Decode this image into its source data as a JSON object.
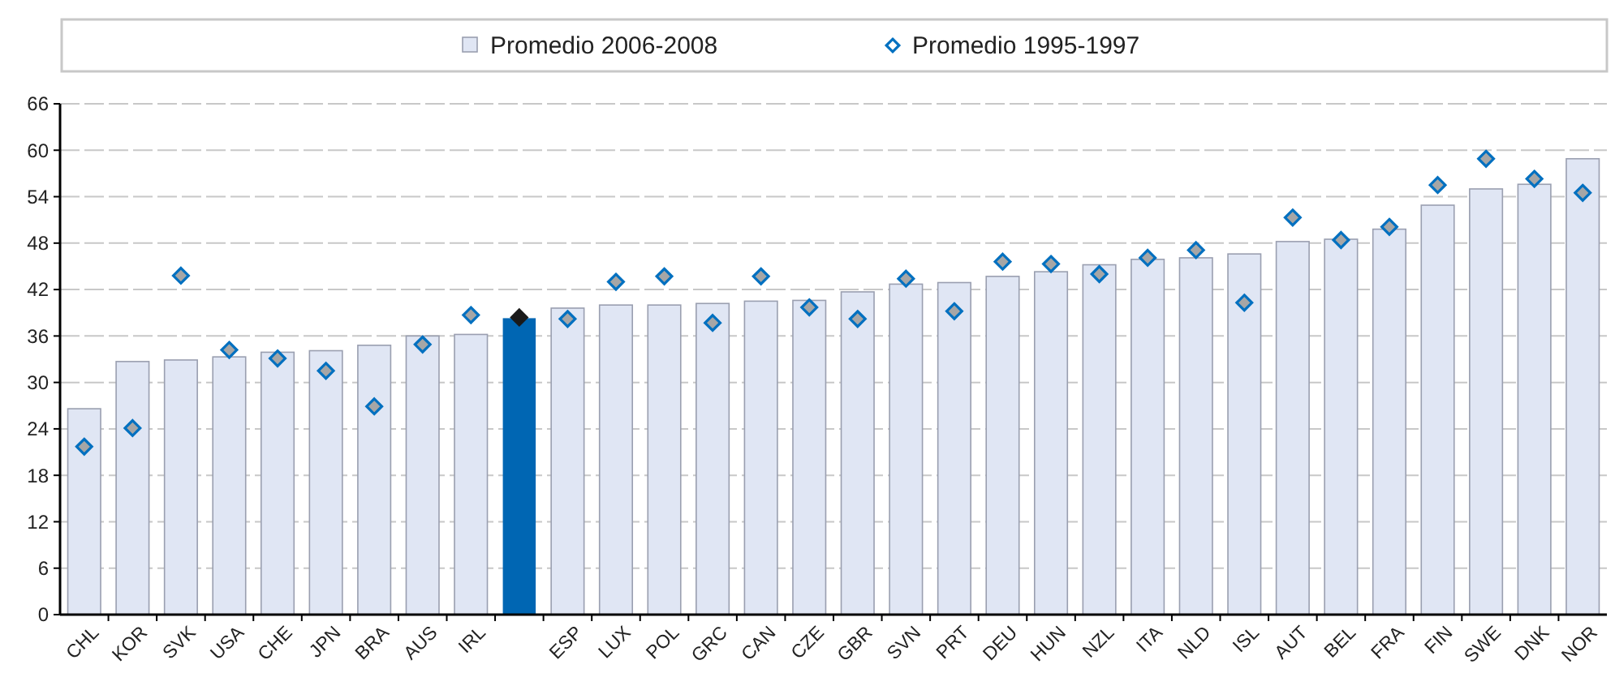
{
  "chart_data": {
    "type": "bar",
    "categories": [
      "CHL",
      "KOR",
      "SVK",
      "USA",
      "CHE",
      "JPN",
      "BRA",
      "AUS",
      "IRL",
      null,
      "ESP",
      "LUX",
      "POL",
      "GRC",
      "CAN",
      "CZE",
      "GBR",
      "SVN",
      "PRT",
      "DEU",
      "HUN",
      "NZL",
      "ITA",
      "NLD",
      "ISL",
      "AUT",
      "BEL",
      "FRA",
      "FIN",
      "SWE",
      "DNK",
      "NOR"
    ],
    "series": [
      {
        "name": "Promedio 2006-2008",
        "color": "#e0e6f4",
        "colors": [
          "#e0e6f4",
          "#e0e6f4",
          "#e0e6f4",
          "#e0e6f4",
          "#e0e6f4",
          "#e0e6f4",
          "#e0e6f4",
          "#e0e6f4",
          "#e0e6f4",
          "#0066b3",
          "#e0e6f4",
          "#e0e6f4",
          "#e0e6f4",
          "#e0e6f4",
          "#e0e6f4",
          "#e0e6f4",
          "#e0e6f4",
          "#e0e6f4",
          "#e0e6f4",
          "#e0e6f4",
          "#e0e6f4",
          "#e0e6f4",
          "#e0e6f4",
          "#e0e6f4",
          "#e0e6f4",
          "#e0e6f4",
          "#e0e6f4",
          "#e0e6f4",
          "#e0e6f4",
          "#e0e6f4",
          "#e0e6f4",
          "#e0e6f4"
        ],
        "values": [
          26.6,
          32.7,
          32.9,
          33.3,
          33.9,
          34.1,
          34.8,
          36.0,
          36.2,
          38.3,
          39.6,
          40.0,
          40.0,
          40.2,
          40.5,
          40.6,
          41.7,
          42.7,
          42.9,
          43.7,
          44.3,
          45.2,
          45.9,
          46.1,
          46.6,
          48.2,
          48.5,
          49.8,
          52.9,
          55.0,
          55.6,
          58.9
        ]
      },
      {
        "name": "Promedio 1995-1997",
        "type": "scatter",
        "marker": "diamond",
        "color": "#0070c0",
        "colors": [
          "#0070c0",
          "#0070c0",
          "#0070c0",
          "#0070c0",
          "#0070c0",
          "#0070c0",
          "#0070c0",
          "#0070c0",
          "#0070c0",
          "#1a1a1a",
          "#0070c0",
          "#0070c0",
          "#0070c0",
          "#0070c0",
          "#0070c0",
          "#0070c0",
          "#0070c0",
          "#0070c0",
          "#0070c0",
          "#0070c0",
          "#0070c0",
          "#0070c0",
          "#0070c0",
          "#0070c0",
          "#0070c0",
          "#0070c0",
          "#0070c0",
          "#0070c0",
          "#0070c0",
          "#0070c0",
          "#0070c0",
          "#0070c0"
        ],
        "values": [
          21.7,
          24.1,
          43.8,
          34.2,
          33.1,
          31.5,
          26.9,
          34.9,
          38.7,
          38.4,
          38.2,
          43.0,
          43.7,
          37.7,
          43.7,
          39.7,
          38.2,
          43.4,
          39.2,
          45.6,
          45.3,
          44.0,
          46.1,
          47.1,
          40.3,
          51.3,
          48.4,
          50.1,
          55.5,
          58.9,
          56.3,
          54.5
        ]
      }
    ],
    "ylim": [
      0,
      66
    ],
    "yticks": [
      0,
      6,
      12,
      18,
      24,
      30,
      36,
      42,
      48,
      54,
      60,
      66
    ],
    "grid": "y",
    "legend": "top"
  }
}
